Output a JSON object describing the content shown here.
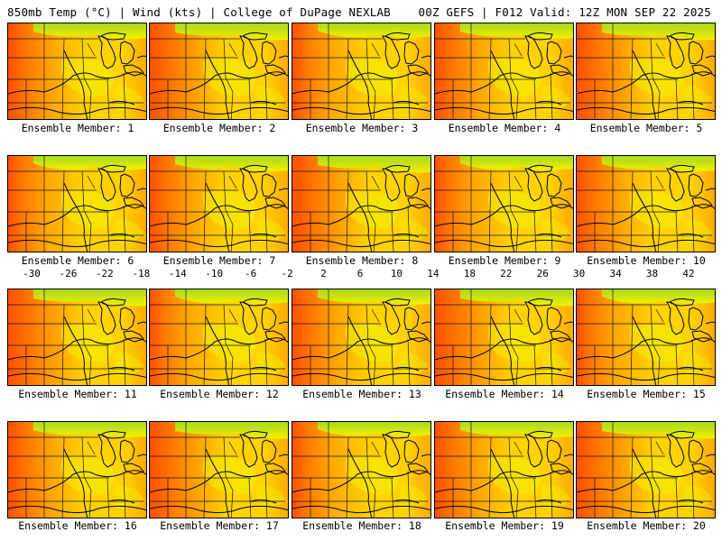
{
  "header": {
    "left_title": "850mb Temp (°C) | Wind (kts) | College of DuPage NEXLAB",
    "right_title": "00Z GEFS | F012 Valid: 12Z MON SEP 22 2025"
  },
  "members": [
    {
      "label": "Ensemble Member: 1"
    },
    {
      "label": "Ensemble Member: 2"
    },
    {
      "label": "Ensemble Member: 3"
    },
    {
      "label": "Ensemble Member: 4"
    },
    {
      "label": "Ensemble Member: 5"
    },
    {
      "label": "Ensemble Member: 6"
    },
    {
      "label": "Ensemble Member: 7"
    },
    {
      "label": "Ensemble Member: 8"
    },
    {
      "label": "Ensemble Member: 9"
    },
    {
      "label": "Ensemble Member: 10"
    },
    {
      "label": "Ensemble Member: 11"
    },
    {
      "label": "Ensemble Member: 12"
    },
    {
      "label": "Ensemble Member: 13"
    },
    {
      "label": "Ensemble Member: 14"
    },
    {
      "label": "Ensemble Member: 15"
    },
    {
      "label": "Ensemble Member: 16"
    },
    {
      "label": "Ensemble Member: 17"
    },
    {
      "label": "Ensemble Member: 18"
    },
    {
      "label": "Ensemble Member: 19"
    },
    {
      "label": "Ensemble Member: 20"
    }
  ],
  "colorbar": {
    "tick_labels": [
      "-30",
      "-26",
      "-22",
      "-18",
      "-14",
      "-10",
      "-6",
      "-2",
      "2",
      "6",
      "10",
      "14",
      "18",
      "22",
      "26",
      "30",
      "34",
      "38",
      "42"
    ],
    "colors": [
      "#5e5e5e",
      "#7a7a7a",
      "#969696",
      "#b4b4b4",
      "#c8c8d8",
      "#d9b0e8",
      "#e080f0",
      "#d040d8",
      "#a020c8",
      "#7020c0",
      "#4030c8",
      "#2050e0",
      "#2090f0",
      "#30c0f0",
      "#40e0e0",
      "#30d0a0",
      "#20b050",
      "#40a020",
      "#70c010",
      "#b0e000",
      "#f0f000",
      "#ffe000",
      "#ffc000",
      "#ffa000",
      "#ff8000",
      "#ff5a00",
      "#f03000",
      "#e01000",
      "#c00000",
      "#a00000",
      "#800000",
      "#900030",
      "#c00080",
      "#e020c0",
      "#f060e0",
      "#f8a0f0",
      "#ffd0ff"
    ]
  },
  "map_colors": {
    "cool": "#a8d820",
    "yellow": "#f0f000",
    "amber": "#ffd200",
    "orange": "#ffa800",
    "deep_orange": "#ff7800",
    "red_orange": "#ff5000"
  }
}
